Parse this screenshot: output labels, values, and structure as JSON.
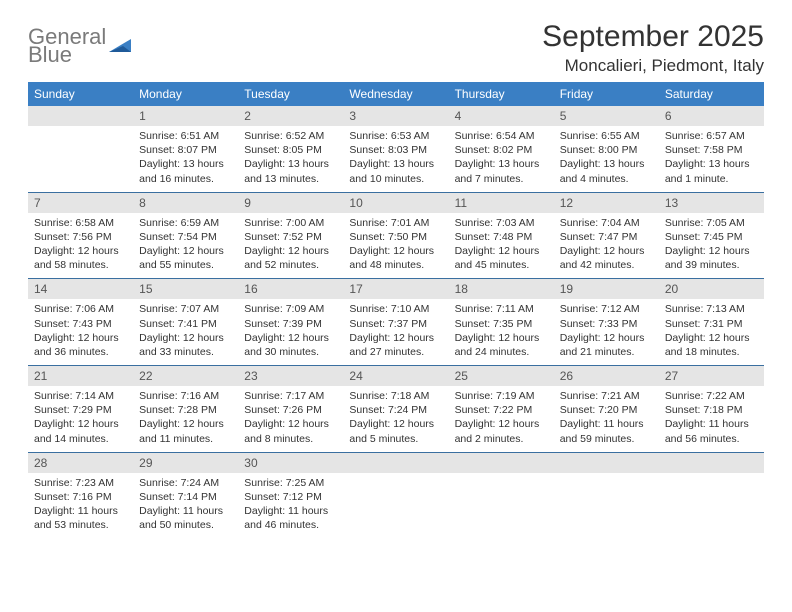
{
  "brand": {
    "line1": "General",
    "line2": "Blue"
  },
  "colors": {
    "header_bg": "#3a7fc4",
    "daynum_bg": "#e5e5e5",
    "text": "#333333",
    "logo_gray": "#7a7a7a",
    "row_border": "#3a6fa0"
  },
  "title": "September 2025",
  "location": "Moncalieri, Piedmont, Italy",
  "weekdays": [
    "Sunday",
    "Monday",
    "Tuesday",
    "Wednesday",
    "Thursday",
    "Friday",
    "Saturday"
  ],
  "start_offset": 1,
  "days": [
    {
      "n": 1,
      "sunrise": "6:51 AM",
      "sunset": "8:07 PM",
      "daylight": "13 hours and 16 minutes."
    },
    {
      "n": 2,
      "sunrise": "6:52 AM",
      "sunset": "8:05 PM",
      "daylight": "13 hours and 13 minutes."
    },
    {
      "n": 3,
      "sunrise": "6:53 AM",
      "sunset": "8:03 PM",
      "daylight": "13 hours and 10 minutes."
    },
    {
      "n": 4,
      "sunrise": "6:54 AM",
      "sunset": "8:02 PM",
      "daylight": "13 hours and 7 minutes."
    },
    {
      "n": 5,
      "sunrise": "6:55 AM",
      "sunset": "8:00 PM",
      "daylight": "13 hours and 4 minutes."
    },
    {
      "n": 6,
      "sunrise": "6:57 AM",
      "sunset": "7:58 PM",
      "daylight": "13 hours and 1 minute."
    },
    {
      "n": 7,
      "sunrise": "6:58 AM",
      "sunset": "7:56 PM",
      "daylight": "12 hours and 58 minutes."
    },
    {
      "n": 8,
      "sunrise": "6:59 AM",
      "sunset": "7:54 PM",
      "daylight": "12 hours and 55 minutes."
    },
    {
      "n": 9,
      "sunrise": "7:00 AM",
      "sunset": "7:52 PM",
      "daylight": "12 hours and 52 minutes."
    },
    {
      "n": 10,
      "sunrise": "7:01 AM",
      "sunset": "7:50 PM",
      "daylight": "12 hours and 48 minutes."
    },
    {
      "n": 11,
      "sunrise": "7:03 AM",
      "sunset": "7:48 PM",
      "daylight": "12 hours and 45 minutes."
    },
    {
      "n": 12,
      "sunrise": "7:04 AM",
      "sunset": "7:47 PM",
      "daylight": "12 hours and 42 minutes."
    },
    {
      "n": 13,
      "sunrise": "7:05 AM",
      "sunset": "7:45 PM",
      "daylight": "12 hours and 39 minutes."
    },
    {
      "n": 14,
      "sunrise": "7:06 AM",
      "sunset": "7:43 PM",
      "daylight": "12 hours and 36 minutes."
    },
    {
      "n": 15,
      "sunrise": "7:07 AM",
      "sunset": "7:41 PM",
      "daylight": "12 hours and 33 minutes."
    },
    {
      "n": 16,
      "sunrise": "7:09 AM",
      "sunset": "7:39 PM",
      "daylight": "12 hours and 30 minutes."
    },
    {
      "n": 17,
      "sunrise": "7:10 AM",
      "sunset": "7:37 PM",
      "daylight": "12 hours and 27 minutes."
    },
    {
      "n": 18,
      "sunrise": "7:11 AM",
      "sunset": "7:35 PM",
      "daylight": "12 hours and 24 minutes."
    },
    {
      "n": 19,
      "sunrise": "7:12 AM",
      "sunset": "7:33 PM",
      "daylight": "12 hours and 21 minutes."
    },
    {
      "n": 20,
      "sunrise": "7:13 AM",
      "sunset": "7:31 PM",
      "daylight": "12 hours and 18 minutes."
    },
    {
      "n": 21,
      "sunrise": "7:14 AM",
      "sunset": "7:29 PM",
      "daylight": "12 hours and 14 minutes."
    },
    {
      "n": 22,
      "sunrise": "7:16 AM",
      "sunset": "7:28 PM",
      "daylight": "12 hours and 11 minutes."
    },
    {
      "n": 23,
      "sunrise": "7:17 AM",
      "sunset": "7:26 PM",
      "daylight": "12 hours and 8 minutes."
    },
    {
      "n": 24,
      "sunrise": "7:18 AM",
      "sunset": "7:24 PM",
      "daylight": "12 hours and 5 minutes."
    },
    {
      "n": 25,
      "sunrise": "7:19 AM",
      "sunset": "7:22 PM",
      "daylight": "12 hours and 2 minutes."
    },
    {
      "n": 26,
      "sunrise": "7:21 AM",
      "sunset": "7:20 PM",
      "daylight": "11 hours and 59 minutes."
    },
    {
      "n": 27,
      "sunrise": "7:22 AM",
      "sunset": "7:18 PM",
      "daylight": "11 hours and 56 minutes."
    },
    {
      "n": 28,
      "sunrise": "7:23 AM",
      "sunset": "7:16 PM",
      "daylight": "11 hours and 53 minutes."
    },
    {
      "n": 29,
      "sunrise": "7:24 AM",
      "sunset": "7:14 PM",
      "daylight": "11 hours and 50 minutes."
    },
    {
      "n": 30,
      "sunrise": "7:25 AM",
      "sunset": "7:12 PM",
      "daylight": "11 hours and 46 minutes."
    }
  ],
  "labels": {
    "sunrise": "Sunrise:",
    "sunset": "Sunset:",
    "daylight": "Daylight:"
  }
}
